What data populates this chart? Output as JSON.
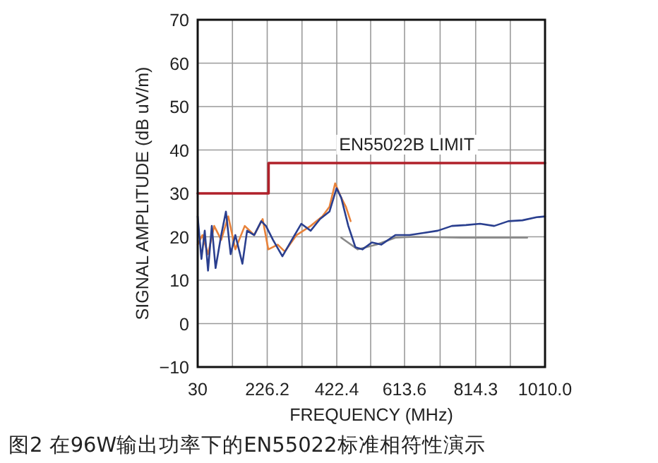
{
  "chart_data": {
    "type": "line",
    "xlabel": "FREQUENCY (MHz)",
    "ylabel": "SIGNAL AMPLITUDE (dB uV/m)",
    "annotations": [
      "图2 在96W输出功率下的EN55022标准相符性演示"
    ],
    "xlim": [
      30,
      1010
    ],
    "ylim": [
      -10,
      70
    ],
    "xticks": [
      30,
      {
        "value": 128.1,
        "label": null
      },
      226.2,
      {
        "value": 324.3,
        "label": null
      },
      422.4,
      {
        "value": 518,
        "label": null
      },
      613.6,
      {
        "value": 714,
        "label": null
      },
      814.3,
      {
        "value": 912,
        "label": null
      },
      {
        "value": 1010,
        "label": "1010.0"
      }
    ],
    "yticks": [
      -10,
      0,
      10,
      20,
      30,
      40,
      50,
      60,
      70
    ],
    "grid": true,
    "legend": false,
    "marker": "none",
    "line_style": "solid",
    "series": [
      {
        "name": "EN55022B LIMIT",
        "color": "#b0202a",
        "x": [
          30,
          230,
          230,
          1010
        ],
        "values": [
          30,
          30,
          37,
          37
        ]
      },
      {
        "color": "#8a8a8a",
        "x": [
          435,
          481.5,
          534.6,
          587.8,
          640.9,
          773.7,
          959.6
        ],
        "values": [
          19.8,
          17.1,
          18.2,
          19.8,
          20,
          19.8,
          19.8
        ]
      },
      {
        "color": "#e8823a",
        "x": [
          30,
          43.3,
          59.2,
          76.5,
          96.4,
          116.3,
          136.2,
          162.8,
          189.4,
          213.3,
          229.2,
          255.8,
          275.7,
          308.9,
          348.7,
          381.9,
          401.8,
          417.8,
          435,
          448.3,
          461.6
        ],
        "values": [
          18.2,
          20.4,
          16,
          22.5,
          19.3,
          24.7,
          17.1,
          22.5,
          20.4,
          24.1,
          17.1,
          18.2,
          16.6,
          20.4,
          22.5,
          24.7,
          26.9,
          32.3,
          29,
          26.9,
          23.6
        ]
      },
      {
        "color": "#2a3f8f",
        "x": [
          30,
          40.6,
          49.9,
          59.2,
          69.8,
          80.5,
          96.4,
          109.7,
          123,
          136.2,
          156.2,
          169.4,
          189.4,
          209.3,
          222.6,
          242.5,
          269,
          295.6,
          322.2,
          348.7,
          375.3,
          401.8,
          421.8,
          435,
          455,
          474.9,
          494.8,
          521.4,
          547.9,
          587.8,
          627.6,
          667.4,
          707.3,
          747.1,
          787,
          826.8,
          866.6,
          906.5,
          946.3,
          986.2,
          1010
        ],
        "values": [
          24.7,
          14.9,
          21.4,
          12.2,
          22.5,
          12.8,
          20.4,
          25.8,
          16,
          20.4,
          13.8,
          21.4,
          20.4,
          23.6,
          22.5,
          19.3,
          15.5,
          19.3,
          23,
          21.4,
          24.1,
          25.8,
          31.2,
          29,
          22.5,
          17.6,
          17.1,
          18.7,
          18.2,
          20.4,
          20.4,
          20.9,
          21.4,
          22.5,
          22.7,
          23,
          22.5,
          23.6,
          23.8,
          24.5,
          24.7
        ]
      }
    ]
  }
}
